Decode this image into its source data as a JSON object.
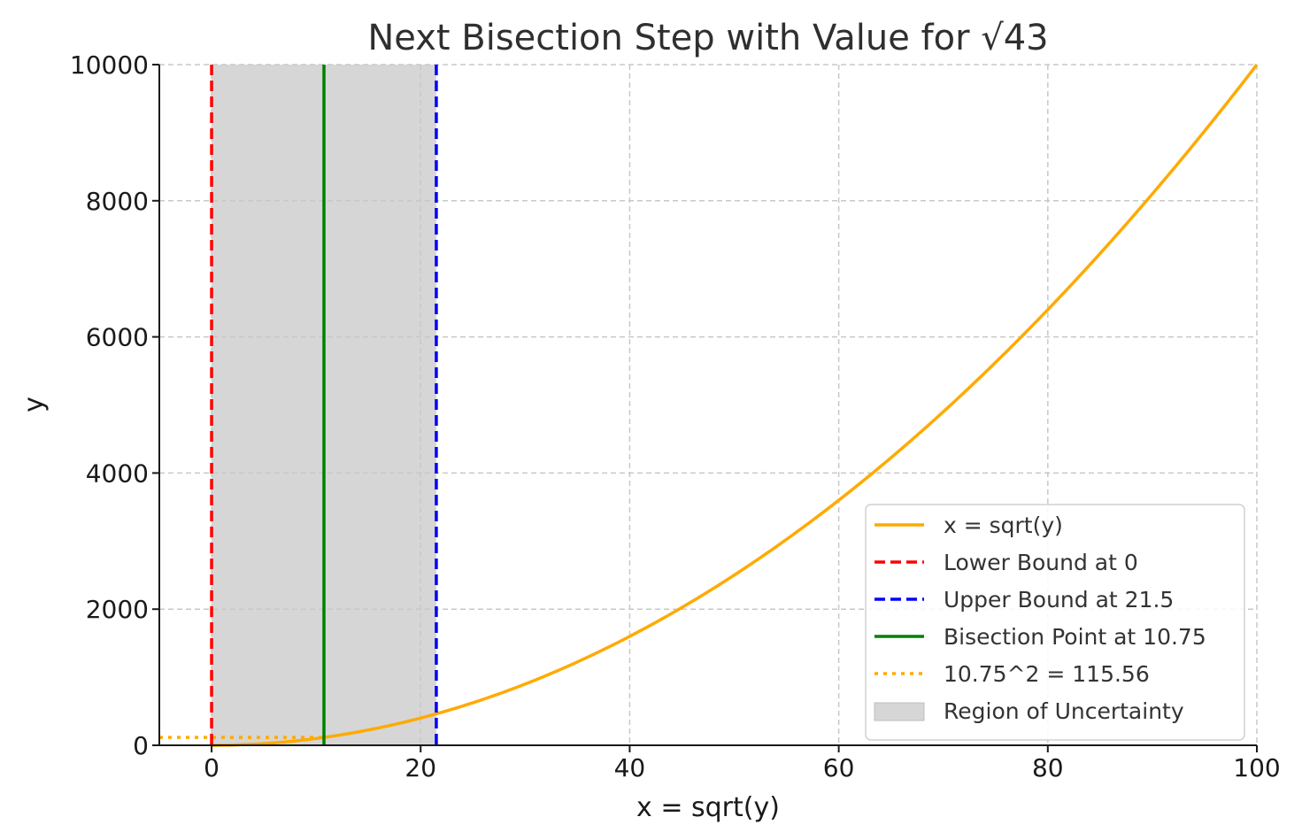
{
  "chart_data": {
    "type": "line",
    "title": "Next Bisection Step with Value for √43",
    "xlabel": "x = sqrt(y)",
    "ylabel": "y",
    "xlim": [
      -5,
      100
    ],
    "ylim": [
      0,
      10000
    ],
    "x_ticks": [
      0,
      20,
      40,
      60,
      80,
      100
    ],
    "y_ticks": [
      0,
      2000,
      4000,
      6000,
      8000,
      10000
    ],
    "grid": true,
    "legend_position": "lower-right",
    "curve": {
      "name": "x = sqrt(y)",
      "color": "#ffaa00",
      "relation": "y = x^2",
      "x_range": [
        0,
        100
      ]
    },
    "shaded_region": {
      "name": "Region of Uncertainty",
      "x_from": 0,
      "x_to": 21.5,
      "color": "#d6d6d6"
    },
    "vertical_lines": [
      {
        "name": "Lower Bound at 0",
        "x": 0,
        "color": "#ff0000",
        "style": "dashed"
      },
      {
        "name": "Upper Bound at 21.5",
        "x": 21.5,
        "color": "#0000ff",
        "style": "dashed"
      },
      {
        "name": "Bisection Point at 10.75",
        "x": 10.75,
        "color": "#008000",
        "style": "solid"
      }
    ],
    "horizontal_lines": [
      {
        "name": "10.75^2 = 115.56",
        "y": 115.56,
        "x_to": 10.75,
        "color": "#ffaa00",
        "style": "dotted"
      }
    ],
    "legend": [
      {
        "label": "x = sqrt(y)",
        "color": "#ffaa00",
        "style": "solid"
      },
      {
        "label": "Lower Bound at 0",
        "color": "#ff0000",
        "style": "dashed"
      },
      {
        "label": "Upper Bound at 21.5",
        "color": "#0000ff",
        "style": "dashed"
      },
      {
        "label": "Bisection Point at 10.75",
        "color": "#008000",
        "style": "solid"
      },
      {
        "label": "10.75^2 = 115.56",
        "color": "#ffaa00",
        "style": "dotted"
      },
      {
        "label": "Region of Uncertainty",
        "color": "#d6d6d6",
        "style": "patch"
      }
    ]
  }
}
